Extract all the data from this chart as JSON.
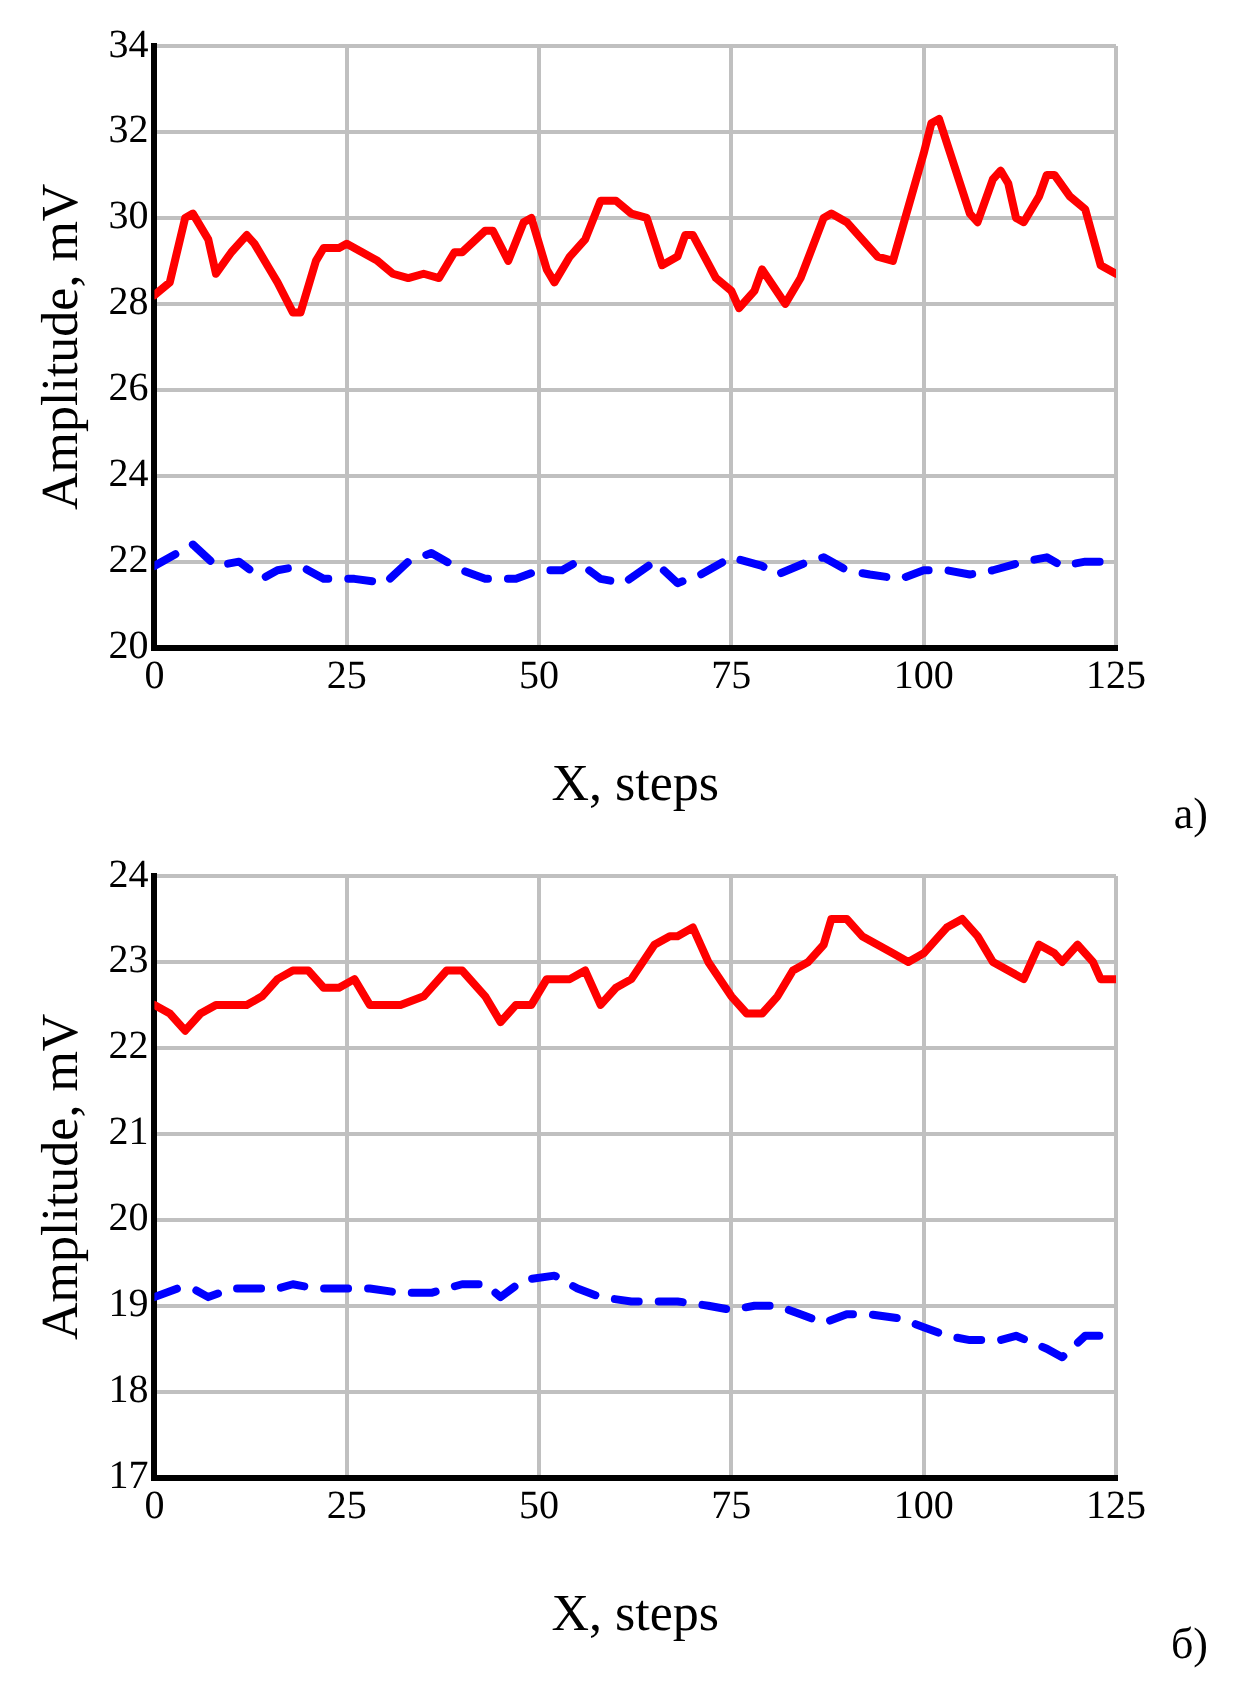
{
  "chart_data": [
    {
      "type": "line",
      "xlabel": "X, steps",
      "ylabel": "Amplitude, mV",
      "xlim": [
        0,
        125
      ],
      "xticks": [
        0,
        25,
        50,
        75,
        100,
        125
      ],
      "ylim": [
        20,
        34
      ],
      "yticks": [
        20,
        22,
        24,
        26,
        28,
        30,
        32,
        34
      ],
      "grid": true,
      "marker": "none",
      "annotations": [
        "а)"
      ],
      "series": [
        {
          "color": "#ff0000",
          "line_style": "solid",
          "x": [
            0,
            2,
            4,
            5,
            7,
            8,
            10,
            12,
            13,
            15,
            16,
            18,
            19,
            21,
            22,
            24,
            25,
            27,
            29,
            31,
            33,
            35,
            37,
            39,
            40,
            43,
            44,
            46,
            48,
            49,
            51,
            52,
            54,
            56,
            58,
            60,
            62,
            64,
            66,
            68,
            69,
            70,
            73,
            75,
            76,
            78,
            79,
            82,
            84,
            87,
            88,
            90,
            92,
            94,
            96,
            100,
            101,
            102,
            104,
            106,
            107,
            109,
            110,
            111,
            112,
            113,
            115,
            116,
            117,
            119,
            121,
            123,
            125
          ],
          "values": [
            28.2,
            28.5,
            30.0,
            30.1,
            29.5,
            28.7,
            29.2,
            29.6,
            29.4,
            28.8,
            28.5,
            27.8,
            27.8,
            29.0,
            29.3,
            29.3,
            29.4,
            29.2,
            29.0,
            28.7,
            28.6,
            28.7,
            28.6,
            29.2,
            29.2,
            29.7,
            29.7,
            29.0,
            29.9,
            30.0,
            28.8,
            28.5,
            29.1,
            29.5,
            30.4,
            30.4,
            30.1,
            30.0,
            28.9,
            29.1,
            29.6,
            29.6,
            28.6,
            28.3,
            27.9,
            28.3,
            28.8,
            28.0,
            28.6,
            30.0,
            30.1,
            29.9,
            29.5,
            29.1,
            29.0,
            31.5,
            32.2,
            32.3,
            31.2,
            30.1,
            29.9,
            30.9,
            31.1,
            30.8,
            30.0,
            29.9,
            30.5,
            31.0,
            31.0,
            30.5,
            30.2,
            28.9,
            28.7
          ]
        },
        {
          "color": "#0000ff",
          "line_style": "dashed",
          "x": [
            0,
            3,
            5,
            8,
            11,
            14,
            16,
            19,
            22,
            26,
            30,
            33,
            36,
            38,
            40,
            43,
            47,
            50,
            53,
            55,
            58,
            61,
            65,
            68,
            71,
            75,
            79,
            81,
            85,
            87,
            90,
            93,
            97,
            100,
            103,
            106,
            109,
            113,
            116,
            118,
            121,
            124
          ],
          "values": [
            21.9,
            22.2,
            22.4,
            21.9,
            22.0,
            21.6,
            21.8,
            21.9,
            21.6,
            21.6,
            21.5,
            22.0,
            22.2,
            22.0,
            21.8,
            21.6,
            21.6,
            21.8,
            21.8,
            22.0,
            21.6,
            21.5,
            22.0,
            21.5,
            21.7,
            22.1,
            21.9,
            21.7,
            22.0,
            22.1,
            21.8,
            21.7,
            21.6,
            21.8,
            21.8,
            21.7,
            21.8,
            22.0,
            22.1,
            21.9,
            22.0,
            22.0
          ]
        }
      ]
    },
    {
      "type": "line",
      "xlabel": "X, steps",
      "ylabel": "Amplitude, mV",
      "xlim": [
        0,
        125
      ],
      "xticks": [
        0,
        25,
        50,
        75,
        100,
        125
      ],
      "ylim": [
        17,
        24
      ],
      "yticks": [
        17,
        18,
        19,
        20,
        21,
        22,
        23,
        24
      ],
      "grid": true,
      "marker": "none",
      "annotations": [
        "б)"
      ],
      "series": [
        {
          "color": "#ff0000",
          "line_style": "solid",
          "x": [
            0,
            2,
            4,
            6,
            8,
            10,
            12,
            14,
            16,
            18,
            20,
            22,
            24,
            26,
            28,
            30,
            32,
            35,
            38,
            40,
            43,
            45,
            47,
            49,
            51,
            54,
            56,
            58,
            60,
            62,
            65,
            67,
            68,
            70,
            72,
            75,
            77,
            79,
            81,
            83,
            85,
            87,
            88,
            90,
            92,
            94,
            96,
            98,
            100,
            102,
            103,
            105,
            107,
            109,
            111,
            113,
            115,
            117,
            118,
            120,
            122,
            123,
            125
          ],
          "values": [
            22.5,
            22.4,
            22.2,
            22.4,
            22.5,
            22.5,
            22.5,
            22.6,
            22.8,
            22.9,
            22.9,
            22.7,
            22.7,
            22.8,
            22.5,
            22.5,
            22.5,
            22.6,
            22.9,
            22.9,
            22.6,
            22.3,
            22.5,
            22.5,
            22.8,
            22.8,
            22.9,
            22.5,
            22.7,
            22.8,
            23.2,
            23.3,
            23.3,
            23.4,
            23.0,
            22.6,
            22.4,
            22.4,
            22.6,
            22.9,
            23.0,
            23.2,
            23.5,
            23.5,
            23.3,
            23.2,
            23.1,
            23.0,
            23.1,
            23.3,
            23.4,
            23.5,
            23.3,
            23.0,
            22.9,
            22.8,
            23.2,
            23.1,
            23.0,
            23.2,
            23.0,
            22.8,
            22.8
          ]
        },
        {
          "color": "#0000ff",
          "line_style": "dashed",
          "x": [
            0,
            3,
            5,
            7,
            10,
            13,
            16,
            18,
            21,
            25,
            28,
            32,
            36,
            40,
            43,
            45,
            48,
            52,
            55,
            58,
            62,
            65,
            68,
            72,
            75,
            78,
            81,
            84,
            87,
            90,
            93,
            97,
            100,
            103,
            106,
            110,
            112,
            116,
            118,
            121,
            125
          ],
          "values": [
            19.1,
            19.2,
            19.2,
            19.1,
            19.2,
            19.2,
            19.2,
            19.25,
            19.2,
            19.2,
            19.2,
            19.15,
            19.15,
            19.25,
            19.25,
            19.1,
            19.3,
            19.35,
            19.2,
            19.1,
            19.05,
            19.05,
            19.05,
            19.0,
            18.95,
            19.0,
            19.0,
            18.9,
            18.8,
            18.9,
            18.9,
            18.85,
            18.75,
            18.65,
            18.6,
            18.6,
            18.65,
            18.5,
            18.4,
            18.65,
            18.65
          ]
        }
      ]
    }
  ]
}
